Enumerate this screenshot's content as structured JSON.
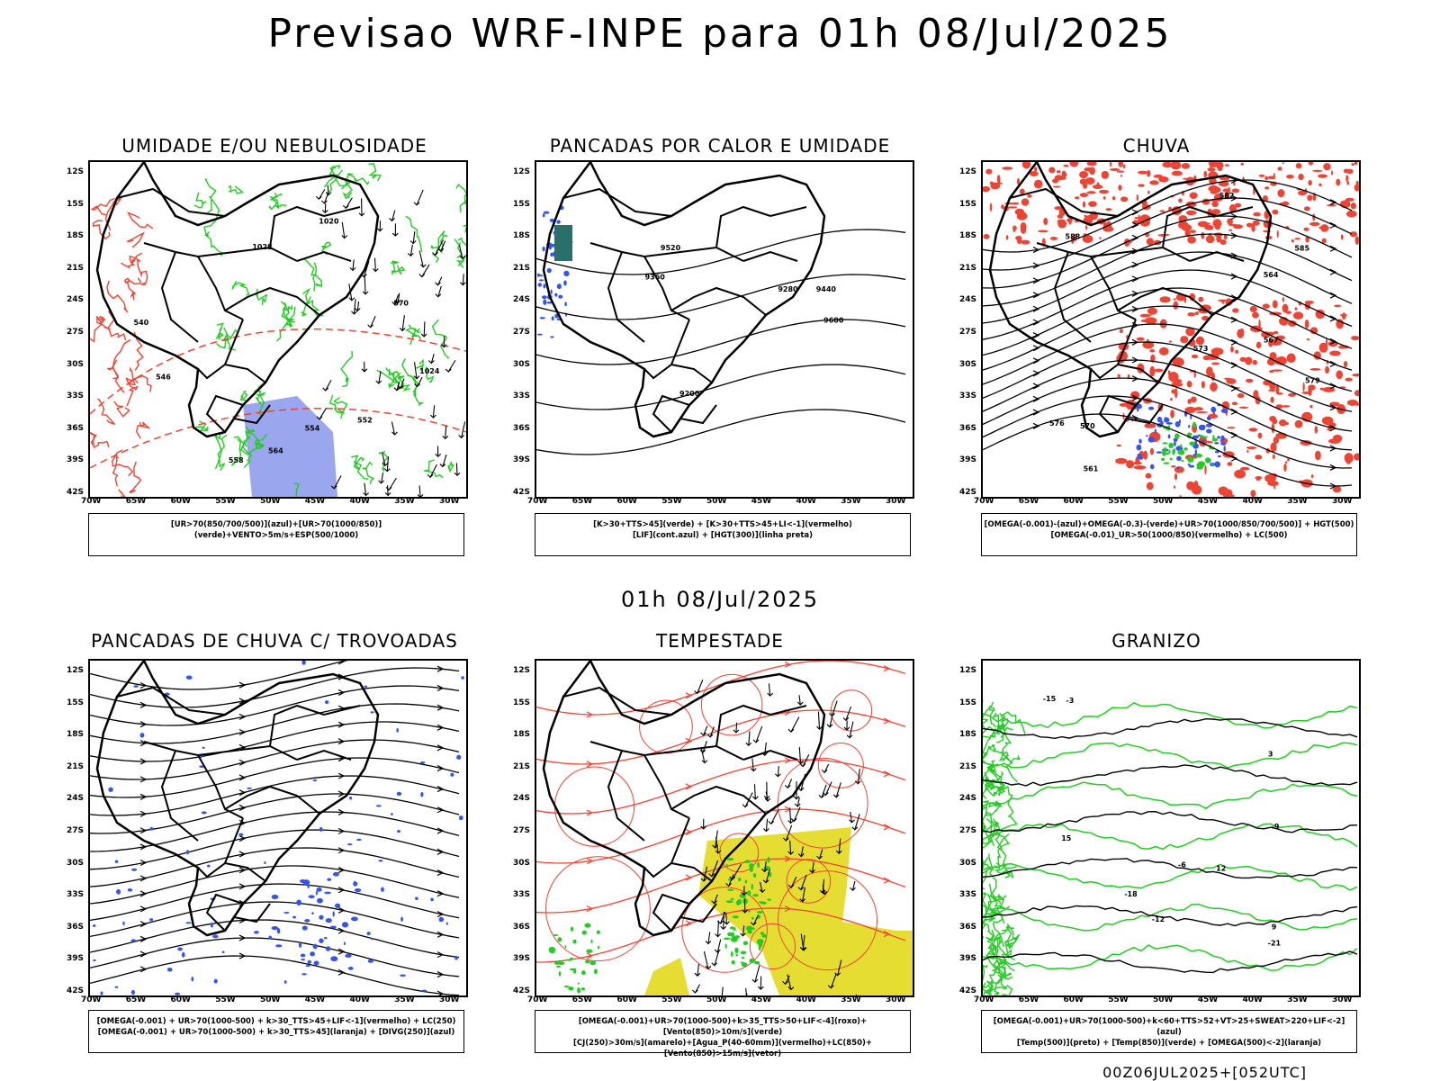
{
  "title": "Previsao WRF-INPE  para 01h 08/Jul/2025",
  "subtitle": "01h 08/Jul/2025",
  "footer": "00Z06JUL2025+[052UTC]",
  "lat_labels": [
    "12S",
    "15S",
    "18S",
    "21S",
    "24S",
    "27S",
    "30S",
    "33S",
    "36S",
    "39S",
    "42S"
  ],
  "lon_labels": [
    "70W",
    "65W",
    "60W",
    "55W",
    "50W",
    "45W",
    "40W",
    "35W",
    "30W"
  ],
  "colors": {
    "green": "#22cc22",
    "red": "#ee4433",
    "blue": "#3355ee",
    "yellow": "#e6dd33",
    "lightblue": "#9aa6ee"
  },
  "panels": [
    {
      "id": "umidade",
      "title": "UMIDADE E/OU NEBULOSIDADE",
      "legend": [
        "[UR>70(850/700/500)](azul)+[UR>70(1000/850)](verde)+VENTO>5m/s+ESP(500/1000)"
      ],
      "contour_labels": [
        "1020",
        "1024",
        "1028",
        "554",
        "558",
        "552",
        "546",
        "540",
        "570",
        "564"
      ]
    },
    {
      "id": "pancadas_calor",
      "title": "PANCADAS POR CALOR E UMIDADE",
      "legend": [
        "[K>30+TTS>45](verde) + [K>30+TTS>45+LI<-1](vermelho)",
        "[LIF](cont.azul) + [HGT(300)](linha preta)"
      ],
      "contour_labels": [
        "9600",
        "9520",
        "9440",
        "9360",
        "9280",
        "9200"
      ]
    },
    {
      "id": "chuva",
      "title": "CHUVA",
      "legend": [
        "[OMEGA(-0.001)-(azul)+OMEGA(-0.3)-(verde)+UR>70(1000/850/700/500)] + HGT(500)",
        "[OMEGA(-0.01)_UR>50(1000/850)(vermelho) + LC(500)"
      ],
      "contour_labels": [
        "588",
        "585",
        "582",
        "579",
        "576",
        "573",
        "570",
        "567",
        "564",
        "561"
      ]
    },
    {
      "id": "trovoadas",
      "title": "PANCADAS DE CHUVA C/ TROVOADAS",
      "legend": [
        "[OMEGA(-0.001) + UR>70(1000-500) + k>30_TTS>45+LIF<-1](vermelho) + LC(250)",
        "[OMEGA(-0.001) + UR>70(1000-500) + k>30_TTS>45](laranja) + [DIVG(250)](azul)"
      ],
      "contour_labels": []
    },
    {
      "id": "tempestade",
      "title": "TEMPESTADE",
      "legend": [
        "[OMEGA(-0.001)+UR>70(1000-500)+k>35_TTS>50+LIF<-4](roxo)+[Vento(850)>10m/s](verde)",
        "[CJ(250)>30m/s](amarelo)+[Agua_P(40-60mm)](vermelho)+LC(850)+[Vento(850)>15m/s](vetor)"
      ],
      "contour_labels": []
    },
    {
      "id": "granizo",
      "title": "GRANIZO",
      "legend": [
        "[OMEGA(-0.001)+UR>70(1000-500)+k<60+TTS>52+VT>25+SWEAT>220+LIF<-2](azul)",
        "[Temp(500)](preto) + [Temp(850)](verde) + [OMEGA(500)<-2](laranja)"
      ],
      "contour_labels": [
        "-3",
        "-6",
        "-9",
        "-12",
        "-15",
        "-18",
        "-21",
        "3",
        "9",
        "12",
        "15"
      ]
    }
  ]
}
